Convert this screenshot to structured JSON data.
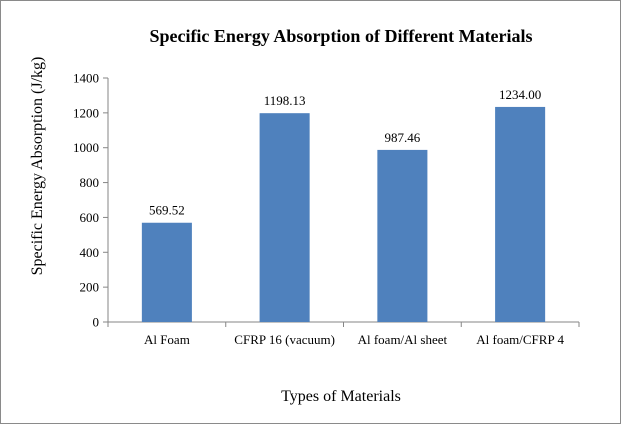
{
  "chart_data": {
    "type": "bar",
    "title": "Specific Energy Absorption of Different Materials",
    "xlabel": "Types of Materials",
    "ylabel": "Specific Energy Absorption (J/kg)",
    "categories": [
      "Al Foam",
      "CFRP 16 (vacuum)",
      "Al foam/Al sheet",
      "Al foam/CFRP 4"
    ],
    "values": [
      569.52,
      1198.13,
      987.46,
      1234.0
    ],
    "data_labels": [
      "569.52",
      "1198.13",
      "987.46",
      "1234.00"
    ],
    "ylim": [
      0,
      1400
    ],
    "yticks": [
      0,
      200,
      400,
      600,
      800,
      1000,
      1200,
      1400
    ],
    "grid": false,
    "legend": "none",
    "bar_color": "#4f81bd"
  }
}
